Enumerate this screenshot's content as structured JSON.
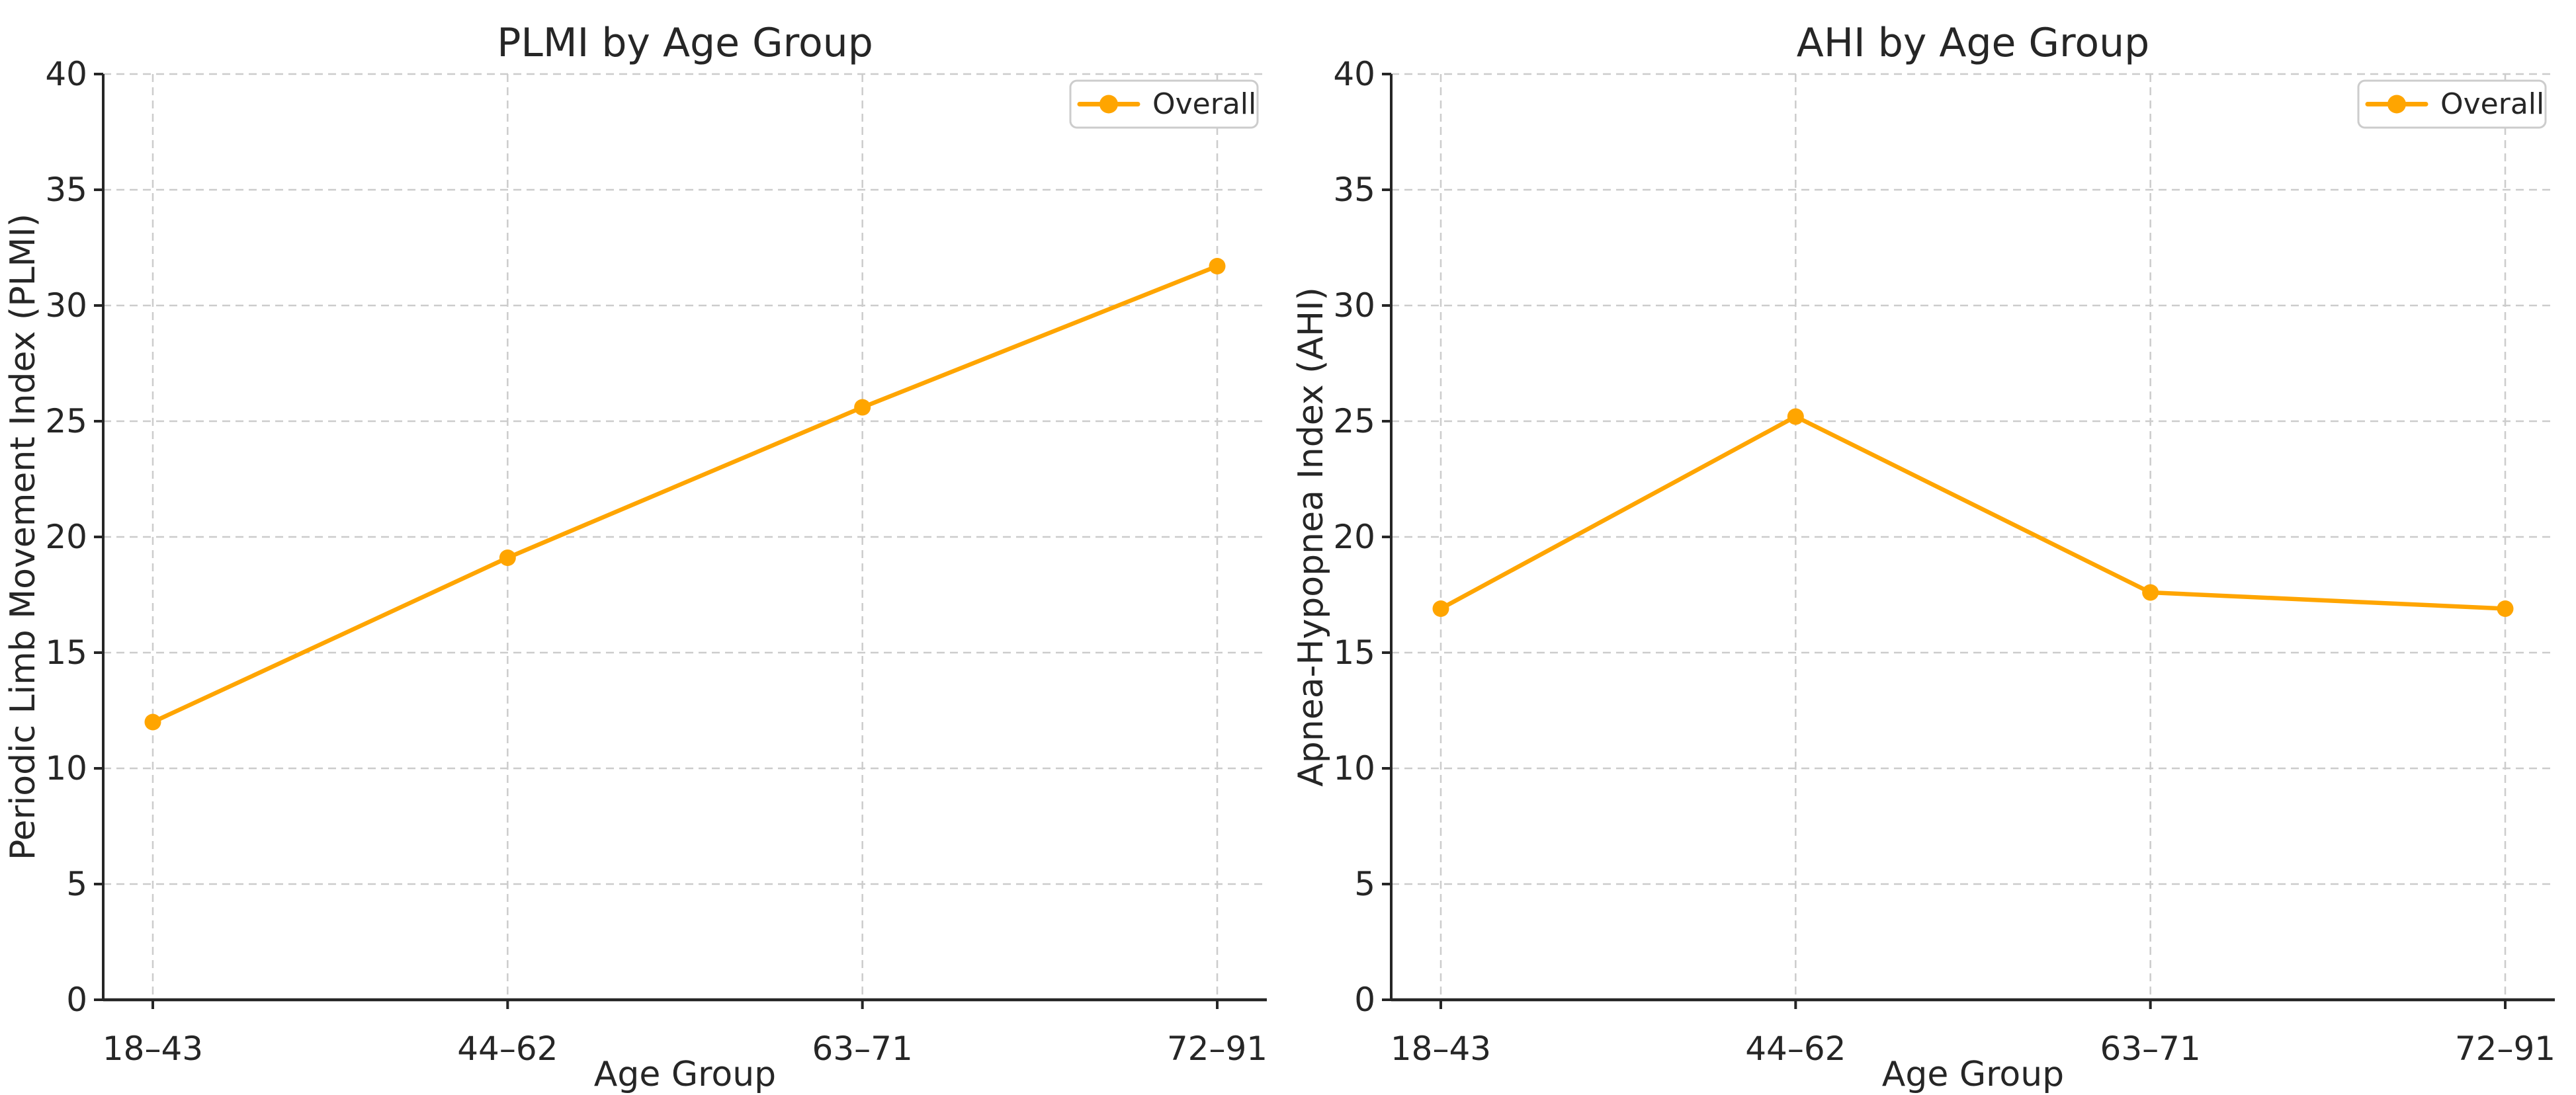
{
  "figure": {
    "background": "#ffffff"
  },
  "style": {
    "axis_color": "#262626",
    "text_color": "#262626",
    "grid_color": "#cccccc",
    "legend_border_color": "#cccccc",
    "legend_background": "#ffffff",
    "series_color": "#FFA500"
  },
  "chart_data": [
    {
      "type": "line",
      "title": "PLMI by Age Group",
      "xlabel": "Age Group",
      "ylabel": "Periodic Limb Movement Index (PLMI)",
      "categories": [
        "18–43",
        "44–62",
        "63–71",
        "72–91"
      ],
      "series": [
        {
          "name": "Overall",
          "color": "#FFA500",
          "marker": "circle",
          "values": [
            12.0,
            19.1,
            25.6,
            31.7
          ]
        }
      ],
      "ylim": [
        0,
        40
      ],
      "yticks": [
        0,
        5,
        10,
        15,
        20,
        25,
        30,
        35,
        40
      ],
      "grid": true,
      "legend": {
        "label": "Overall",
        "position": "upper right"
      }
    },
    {
      "type": "line",
      "title": "AHI by Age Group",
      "xlabel": "Age Group",
      "ylabel": "Apnea-Hypopnea Index (AHI)",
      "categories": [
        "18–43",
        "44–62",
        "63–71",
        "72–91"
      ],
      "series": [
        {
          "name": "Overall",
          "color": "#FFA500",
          "marker": "circle",
          "values": [
            16.9,
            25.2,
            17.6,
            16.9
          ]
        }
      ],
      "ylim": [
        0,
        40
      ],
      "yticks": [
        0,
        5,
        10,
        15,
        20,
        25,
        30,
        35,
        40
      ],
      "grid": true,
      "legend": {
        "label": "Overall",
        "position": "upper right"
      }
    }
  ]
}
